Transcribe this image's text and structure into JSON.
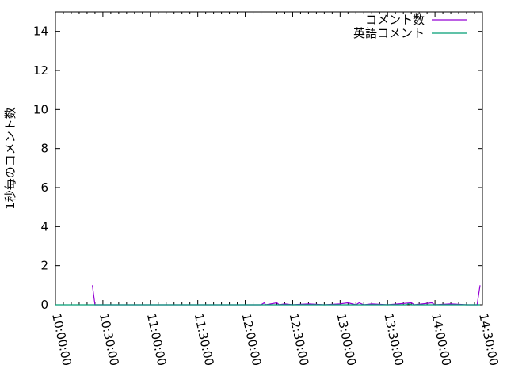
{
  "chart_data": {
    "type": "line",
    "title": "",
    "xlabel": "",
    "ylabel": "1秒毎のコメント数",
    "xlim": [
      "10:00:00",
      "14:30:00"
    ],
    "ylim": [
      0,
      15
    ],
    "x_ticks": [
      "10:00:00",
      "10:30:00",
      "11:00:00",
      "11:30:00",
      "12:00:00",
      "12:30:00",
      "13:00:00",
      "13:30:00",
      "14:00:00",
      "14:30:00"
    ],
    "y_ticks": [
      "0",
      "2",
      "4",
      "6",
      "8",
      "10",
      "12",
      "14"
    ],
    "grid": false,
    "legend": "top-right",
    "series": [
      {
        "name": "コメント数",
        "color": "#9400d3",
        "points": [
          [
            "10:23:20",
            1
          ],
          [
            "10:25:00",
            0
          ],
          [
            "12:00:00",
            0
          ],
          [
            "12:10:00",
            0
          ],
          [
            "12:12:00",
            0.1
          ],
          [
            "12:13:00",
            0
          ],
          [
            "12:20:00",
            0.1
          ],
          [
            "12:21:30",
            0
          ],
          [
            "12:25:00",
            0.05
          ],
          [
            "12:30:00",
            0
          ],
          [
            "12:40:00",
            0.05
          ],
          [
            "12:50:00",
            0
          ],
          [
            "13:00:00",
            0.05
          ],
          [
            "13:05:00",
            0.1
          ],
          [
            "13:10:00",
            0
          ],
          [
            "13:12:00",
            0.1
          ],
          [
            "13:15:00",
            0
          ],
          [
            "13:20:00",
            0.05
          ],
          [
            "13:30:00",
            0
          ],
          [
            "13:45:00",
            0.1
          ],
          [
            "13:47:00",
            0
          ],
          [
            "13:58:00",
            0.1
          ],
          [
            "14:00:00",
            0
          ],
          [
            "14:10:00",
            0.05
          ],
          [
            "14:20:00",
            0
          ],
          [
            "14:26:40",
            0
          ],
          [
            "14:28:30",
            1
          ]
        ]
      },
      {
        "name": "英語コメント",
        "color": "#009e73",
        "points": [
          [
            "10:00:00",
            0
          ],
          [
            "13:42:00",
            0
          ],
          [
            "13:43:00",
            0.05
          ],
          [
            "13:45:00",
            0
          ],
          [
            "14:28:30",
            0
          ]
        ]
      }
    ]
  }
}
